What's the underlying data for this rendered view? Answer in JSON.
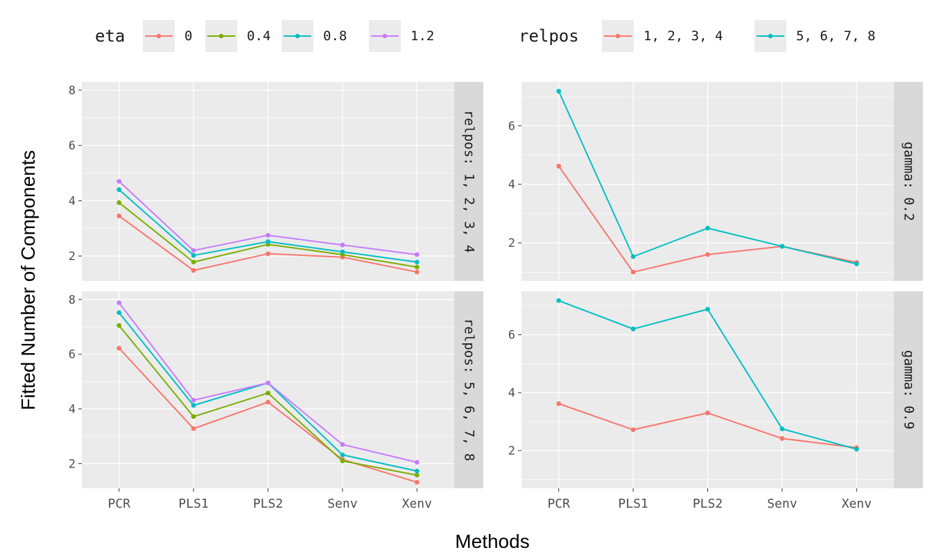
{
  "axes": {
    "xlabel": "Methods",
    "ylabel": "Fitted Number of Components"
  },
  "legends": [
    {
      "title": "eta",
      "entries": [
        {
          "label": "0",
          "color": "#F8766D"
        },
        {
          "label": "0.4",
          "color": "#7CAE00"
        },
        {
          "label": "0.8",
          "color": "#00BFC4"
        },
        {
          "label": "1.2",
          "color": "#C77CFF"
        }
      ]
    },
    {
      "title": "relpos",
      "entries": [
        {
          "label": "1, 2, 3, 4",
          "color": "#F8766D"
        },
        {
          "label": "5, 6, 7, 8",
          "color": "#00BFC4"
        }
      ]
    }
  ],
  "colors": {
    "panel_bg": "#EBEBEB",
    "grid": "#FFFFFF",
    "strip_bg": "#D9D9D9",
    "text": "#1A1A1A",
    "tick_text": "#4D4D4D"
  },
  "chart_data": [
    {
      "type": "line",
      "group": "eta",
      "facet_label": "relpos: 1, 2, 3, 4",
      "categories": [
        "PCR",
        "PLS1",
        "PLS2",
        "Senv",
        "Xenv"
      ],
      "yticks": [
        2,
        4,
        6,
        8
      ],
      "ylim": [
        1.1,
        8.3
      ],
      "series": [
        {
          "name": "0",
          "color": "#F8766D",
          "values": [
            3.45,
            1.48,
            2.08,
            1.96,
            1.42
          ]
        },
        {
          "name": "0.4",
          "color": "#7CAE00",
          "values": [
            3.93,
            1.78,
            2.42,
            2.05,
            1.6
          ]
        },
        {
          "name": "0.8",
          "color": "#00BFC4",
          "values": [
            4.4,
            2.02,
            2.52,
            2.15,
            1.78
          ]
        },
        {
          "name": "1.2",
          "color": "#C77CFF",
          "values": [
            4.7,
            2.2,
            2.75,
            2.4,
            2.05
          ]
        }
      ]
    },
    {
      "type": "line",
      "group": "relpos",
      "facet_label": "gamma: 0.2",
      "categories": [
        "PCR",
        "PLS1",
        "PLS2",
        "Senv",
        "Xenv"
      ],
      "yticks": [
        2,
        4,
        6
      ],
      "ylim": [
        0.7,
        7.5
      ],
      "series": [
        {
          "name": "1, 2, 3, 4",
          "color": "#F8766D",
          "values": [
            4.62,
            1.0,
            1.6,
            1.88,
            1.33
          ]
        },
        {
          "name": "5, 6, 7, 8",
          "color": "#00BFC4",
          "values": [
            7.18,
            1.53,
            2.5,
            1.88,
            1.28
          ]
        }
      ]
    },
    {
      "type": "line",
      "group": "eta",
      "facet_label": "relpos: 5, 6, 7, 8",
      "categories": [
        "PCR",
        "PLS1",
        "PLS2",
        "Senv",
        "Xenv"
      ],
      "yticks": [
        2,
        4,
        6,
        8
      ],
      "ylim": [
        1.1,
        8.3
      ],
      "series": [
        {
          "name": "0",
          "color": "#F8766D",
          "values": [
            6.22,
            3.28,
            4.25,
            2.15,
            1.32
          ]
        },
        {
          "name": "0.4",
          "color": "#7CAE00",
          "values": [
            7.05,
            3.72,
            4.58,
            2.1,
            1.58
          ]
        },
        {
          "name": "0.8",
          "color": "#00BFC4",
          "values": [
            7.52,
            4.13,
            4.95,
            2.32,
            1.73
          ]
        },
        {
          "name": "1.2",
          "color": "#C77CFF",
          "values": [
            7.88,
            4.32,
            4.95,
            2.7,
            2.05
          ]
        }
      ]
    },
    {
      "type": "line",
      "group": "relpos",
      "facet_label": "gamma: 0.9",
      "categories": [
        "PCR",
        "PLS1",
        "PLS2",
        "Senv",
        "Xenv"
      ],
      "yticks": [
        2,
        4,
        6
      ],
      "ylim": [
        0.7,
        7.5
      ],
      "series": [
        {
          "name": "1, 2, 3, 4",
          "color": "#F8766D",
          "values": [
            3.62,
            2.72,
            3.3,
            2.42,
            2.1
          ]
        },
        {
          "name": "5, 6, 7, 8",
          "color": "#00BFC4",
          "values": [
            7.18,
            6.2,
            6.88,
            2.75,
            2.05
          ]
        }
      ]
    }
  ]
}
